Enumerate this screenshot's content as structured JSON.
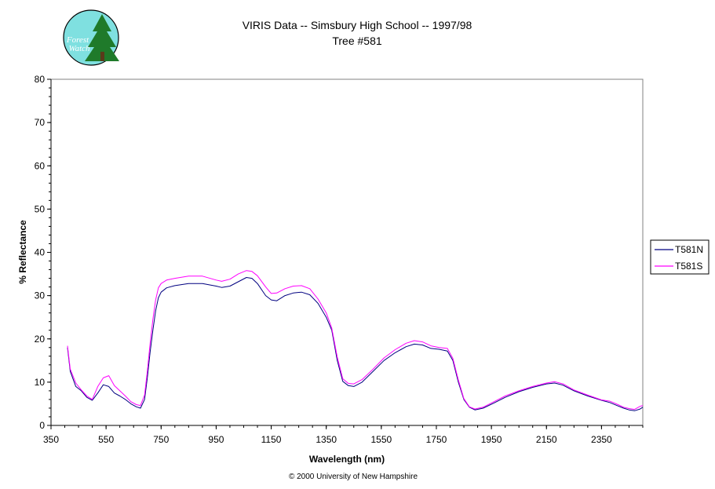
{
  "logo": {
    "line1": "Forest",
    "line2": "Watch"
  },
  "footer": "© 2000 University of New Hampshire",
  "colors": {
    "series1": "#000080",
    "series2": "#ff00ff",
    "axis": "#000000",
    "logo_fill": "#7fe0e0",
    "logo_tree": "#1f7a2a"
  },
  "chart_data": {
    "type": "line",
    "title": "VIRIS Data -- Simsbury High School -- 1997/98",
    "subtitle": "Tree #581",
    "xlabel": "Wavelength (nm)",
    "ylabel": "% Reflectance",
    "xlim": [
      350,
      2500
    ],
    "ylim": [
      0,
      80
    ],
    "xticks": [
      350,
      550,
      750,
      950,
      1150,
      1350,
      1550,
      1750,
      1950,
      2150,
      2350
    ],
    "yticks": [
      0,
      10,
      20,
      30,
      40,
      50,
      60,
      70,
      80
    ],
    "grid": false,
    "legend": "right",
    "series": [
      {
        "name": "T581N",
        "color": "#000080",
        "points": [
          [
            410,
            18.0
          ],
          [
            420,
            12.5
          ],
          [
            440,
            9.0
          ],
          [
            460,
            8.0
          ],
          [
            480,
            6.5
          ],
          [
            500,
            5.8
          ],
          [
            520,
            7.5
          ],
          [
            540,
            9.4
          ],
          [
            560,
            9.0
          ],
          [
            580,
            7.5
          ],
          [
            600,
            6.8
          ],
          [
            620,
            6.0
          ],
          [
            640,
            5.0
          ],
          [
            660,
            4.3
          ],
          [
            675,
            4.0
          ],
          [
            690,
            6.0
          ],
          [
            700,
            11.0
          ],
          [
            710,
            17.0
          ],
          [
            720,
            22.0
          ],
          [
            730,
            26.5
          ],
          [
            740,
            29.5
          ],
          [
            750,
            30.8
          ],
          [
            770,
            31.8
          ],
          [
            800,
            32.3
          ],
          [
            850,
            32.8
          ],
          [
            900,
            32.8
          ],
          [
            950,
            32.2
          ],
          [
            970,
            31.9
          ],
          [
            1000,
            32.2
          ],
          [
            1030,
            33.2
          ],
          [
            1060,
            34.2
          ],
          [
            1080,
            34.0
          ],
          [
            1100,
            32.8
          ],
          [
            1130,
            30.0
          ],
          [
            1150,
            29.0
          ],
          [
            1170,
            28.8
          ],
          [
            1200,
            30.0
          ],
          [
            1230,
            30.6
          ],
          [
            1260,
            30.8
          ],
          [
            1290,
            30.2
          ],
          [
            1320,
            28.2
          ],
          [
            1350,
            25.0
          ],
          [
            1370,
            22.0
          ],
          [
            1390,
            15.0
          ],
          [
            1410,
            10.2
          ],
          [
            1430,
            9.2
          ],
          [
            1450,
            9.0
          ],
          [
            1480,
            10.0
          ],
          [
            1520,
            12.5
          ],
          [
            1560,
            15.0
          ],
          [
            1600,
            16.8
          ],
          [
            1640,
            18.2
          ],
          [
            1670,
            18.8
          ],
          [
            1700,
            18.6
          ],
          [
            1730,
            17.8
          ],
          [
            1760,
            17.6
          ],
          [
            1790,
            17.2
          ],
          [
            1810,
            15.0
          ],
          [
            1830,
            10.0
          ],
          [
            1850,
            6.0
          ],
          [
            1870,
            4.2
          ],
          [
            1890,
            3.6
          ],
          [
            1920,
            4.0
          ],
          [
            1960,
            5.2
          ],
          [
            2000,
            6.5
          ],
          [
            2050,
            7.8
          ],
          [
            2100,
            8.8
          ],
          [
            2150,
            9.6
          ],
          [
            2180,
            9.8
          ],
          [
            2210,
            9.3
          ],
          [
            2250,
            8.0
          ],
          [
            2300,
            6.8
          ],
          [
            2350,
            5.8
          ],
          [
            2380,
            5.3
          ],
          [
            2410,
            4.5
          ],
          [
            2430,
            4.0
          ],
          [
            2450,
            3.6
          ],
          [
            2470,
            3.4
          ],
          [
            2490,
            3.8
          ],
          [
            2500,
            4.2
          ]
        ]
      },
      {
        "name": "T581S",
        "color": "#ff00ff",
        "points": [
          [
            410,
            18.4
          ],
          [
            420,
            13.0
          ],
          [
            440,
            9.8
          ],
          [
            460,
            8.2
          ],
          [
            480,
            6.8
          ],
          [
            500,
            6.0
          ],
          [
            520,
            9.0
          ],
          [
            540,
            11.0
          ],
          [
            560,
            11.5
          ],
          [
            580,
            9.2
          ],
          [
            600,
            8.0
          ],
          [
            620,
            6.8
          ],
          [
            640,
            5.5
          ],
          [
            660,
            4.8
          ],
          [
            675,
            4.6
          ],
          [
            690,
            7.0
          ],
          [
            700,
            12.5
          ],
          [
            710,
            19.0
          ],
          [
            720,
            24.5
          ],
          [
            730,
            29.0
          ],
          [
            740,
            31.8
          ],
          [
            750,
            32.8
          ],
          [
            770,
            33.6
          ],
          [
            800,
            34.0
          ],
          [
            850,
            34.5
          ],
          [
            900,
            34.5
          ],
          [
            950,
            33.6
          ],
          [
            970,
            33.3
          ],
          [
            1000,
            33.8
          ],
          [
            1030,
            35.0
          ],
          [
            1060,
            35.8
          ],
          [
            1080,
            35.6
          ],
          [
            1100,
            34.6
          ],
          [
            1130,
            32.0
          ],
          [
            1150,
            30.5
          ],
          [
            1170,
            30.6
          ],
          [
            1200,
            31.6
          ],
          [
            1230,
            32.2
          ],
          [
            1260,
            32.3
          ],
          [
            1290,
            31.6
          ],
          [
            1320,
            29.2
          ],
          [
            1350,
            26.0
          ],
          [
            1370,
            22.5
          ],
          [
            1390,
            15.8
          ],
          [
            1410,
            10.8
          ],
          [
            1430,
            9.7
          ],
          [
            1450,
            9.6
          ],
          [
            1480,
            10.6
          ],
          [
            1520,
            13.0
          ],
          [
            1560,
            15.6
          ],
          [
            1600,
            17.5
          ],
          [
            1640,
            19.0
          ],
          [
            1670,
            19.6
          ],
          [
            1700,
            19.3
          ],
          [
            1730,
            18.4
          ],
          [
            1760,
            18.0
          ],
          [
            1790,
            17.8
          ],
          [
            1810,
            15.5
          ],
          [
            1830,
            10.5
          ],
          [
            1850,
            6.2
          ],
          [
            1870,
            4.3
          ],
          [
            1890,
            3.8
          ],
          [
            1920,
            4.2
          ],
          [
            1960,
            5.5
          ],
          [
            2000,
            6.8
          ],
          [
            2050,
            8.0
          ],
          [
            2100,
            9.0
          ],
          [
            2150,
            9.8
          ],
          [
            2180,
            10.1
          ],
          [
            2210,
            9.6
          ],
          [
            2250,
            8.2
          ],
          [
            2300,
            7.0
          ],
          [
            2350,
            5.9
          ],
          [
            2380,
            5.6
          ],
          [
            2410,
            4.8
          ],
          [
            2430,
            4.2
          ],
          [
            2450,
            3.9
          ],
          [
            2470,
            3.7
          ],
          [
            2490,
            4.4
          ],
          [
            2500,
            4.6
          ]
        ]
      }
    ]
  }
}
